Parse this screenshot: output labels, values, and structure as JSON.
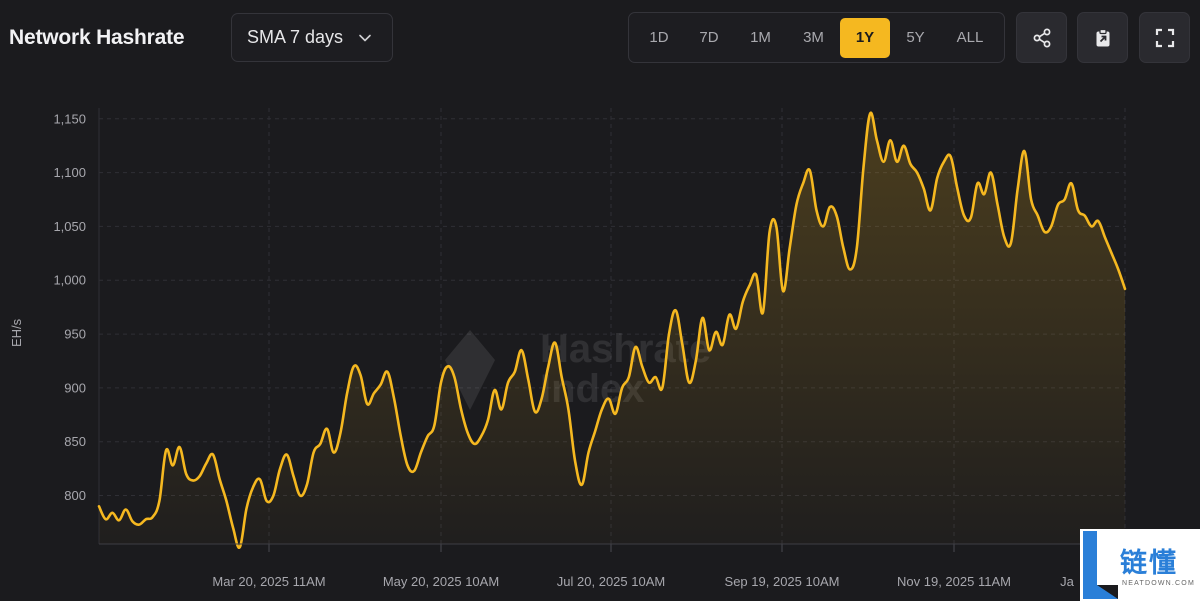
{
  "header": {
    "title": "Network Hashrate",
    "sma_select": {
      "value": "SMA 7 days"
    },
    "ranges": [
      {
        "label": "1D",
        "active": false
      },
      {
        "label": "7D",
        "active": false
      },
      {
        "label": "1M",
        "active": false
      },
      {
        "label": "3M",
        "active": false
      },
      {
        "label": "1Y",
        "active": true
      },
      {
        "label": "5Y",
        "active": false
      },
      {
        "label": "ALL",
        "active": false
      }
    ],
    "actions": [
      {
        "name": "share-icon"
      },
      {
        "name": "clipboard-icon"
      },
      {
        "name": "fullscreen-icon"
      }
    ]
  },
  "watermark": {
    "line1": "Hashrate",
    "line2": "Index"
  },
  "badge": {
    "zh": "链懂",
    "en": "NEATDOWN.COM"
  },
  "chart_data": {
    "type": "area",
    "title": "Network Hashrate",
    "ylabel": "EH/s",
    "xlabel": "",
    "ylim": [
      755,
      1160
    ],
    "yticks": [
      800,
      850,
      900,
      950,
      1000,
      1050,
      1100,
      1150
    ],
    "xticks": [
      "Mar 20, 2025 11AM",
      "May 20, 2025 10AM",
      "Jul 20, 2025 10AM",
      "Sep 19, 2025 10AM",
      "Nov 19, 2025 11AM",
      "Ja"
    ],
    "grid": true,
    "line_color": "#f5b820",
    "series": [
      {
        "values": [
          790,
          778,
          784,
          777,
          787,
          776,
          773,
          778,
          780,
          795,
          842,
          828,
          845,
          820,
          814,
          818,
          830,
          838,
          815,
          795,
          770,
          752,
          788,
          808,
          815,
          795,
          800,
          825,
          838,
          818,
          800,
          810,
          840,
          848,
          862,
          840,
          858,
          895,
          920,
          912,
          885,
          895,
          903,
          915,
          890,
          855,
          828,
          823,
          840,
          855,
          865,
          905,
          920,
          910,
          880,
          858,
          848,
          855,
          870,
          898,
          880,
          905,
          915,
          935,
          908,
          878,
          890,
          920,
          942,
          910,
          880,
          832,
          810,
          840,
          860,
          880,
          890,
          876,
          900,
          910,
          938,
          920,
          905,
          910,
          900,
          950,
          972,
          940,
          905,
          925,
          965,
          935,
          952,
          940,
          968,
          955,
          980,
          995,
          1005,
          970,
          1045,
          1050,
          990,
          1030,
          1070,
          1090,
          1102,
          1065,
          1050,
          1068,
          1060,
          1030,
          1010,
          1030,
          1105,
          1155,
          1130,
          1110,
          1130,
          1110,
          1125,
          1108,
          1100,
          1085,
          1065,
          1095,
          1110,
          1115,
          1085,
          1060,
          1058,
          1090,
          1080,
          1100,
          1070,
          1040,
          1035,
          1085,
          1120,
          1075,
          1060,
          1045,
          1050,
          1070,
          1075,
          1090,
          1065,
          1060,
          1050,
          1055,
          1040,
          1025,
          1010,
          992
        ]
      }
    ]
  }
}
